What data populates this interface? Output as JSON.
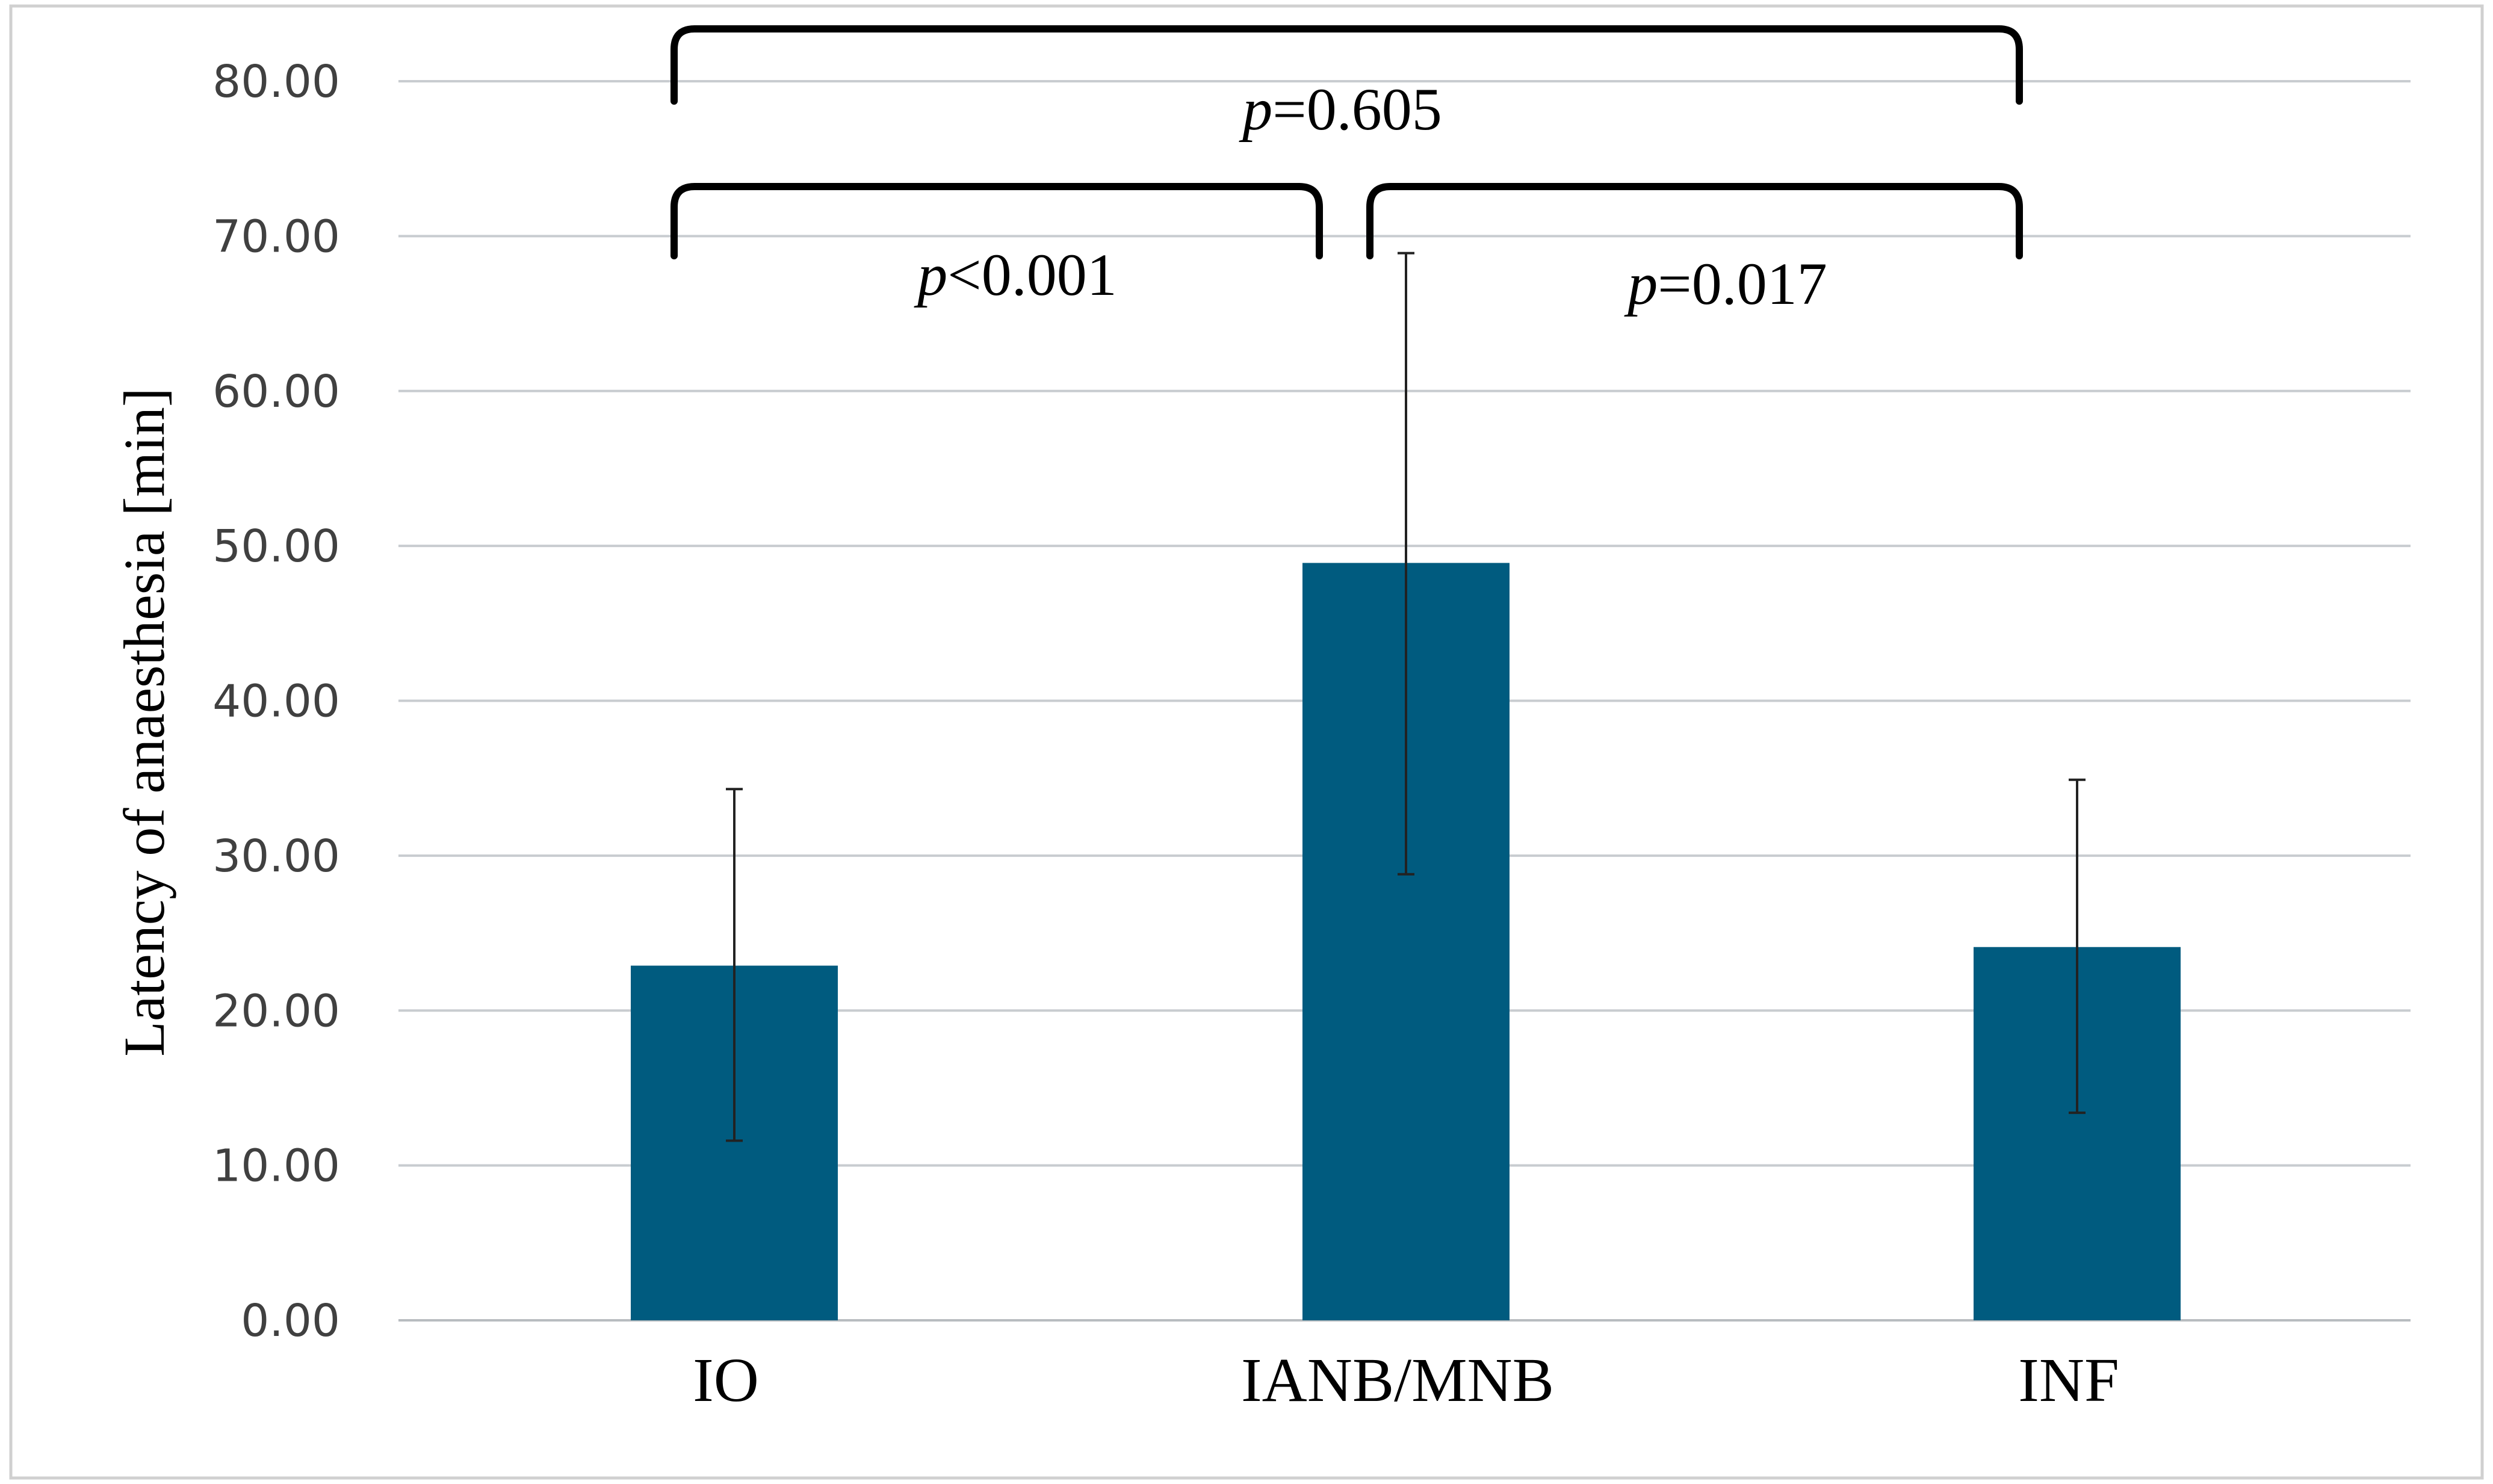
{
  "chart_data": {
    "type": "bar",
    "title": "",
    "xlabel": "",
    "ylabel": "Latency of anaesthesia [min]",
    "ylim": [
      0,
      80
    ],
    "yticks": [
      0,
      10,
      20,
      30,
      40,
      50,
      60,
      70,
      80
    ],
    "ytick_labels": [
      "0.00",
      "10.00",
      "20.00",
      "30.00",
      "40.00",
      "50.00",
      "60.00",
      "70.00",
      "80.00"
    ],
    "categories": [
      "IO",
      "IANB/MNB",
      "INF"
    ],
    "values": [
      22.9,
      48.9,
      24.1
    ],
    "error_low": [
      11.6,
      28.8,
      13.4
    ],
    "error_high": [
      34.3,
      68.9,
      34.9
    ],
    "grid": true,
    "legend": "none",
    "bar_color": "#005b7f",
    "grid_color": "#c8ccd0",
    "annotations": [
      {
        "from": "IO",
        "to": "IANB/MNB",
        "prefix": "p",
        "text": "<0.001"
      },
      {
        "from": "IANB/MNB",
        "to": "INF",
        "prefix": "p",
        "text": "=0.017"
      },
      {
        "from": "IO",
        "to": "INF",
        "prefix": "p",
        "text": "=0.605"
      }
    ]
  }
}
